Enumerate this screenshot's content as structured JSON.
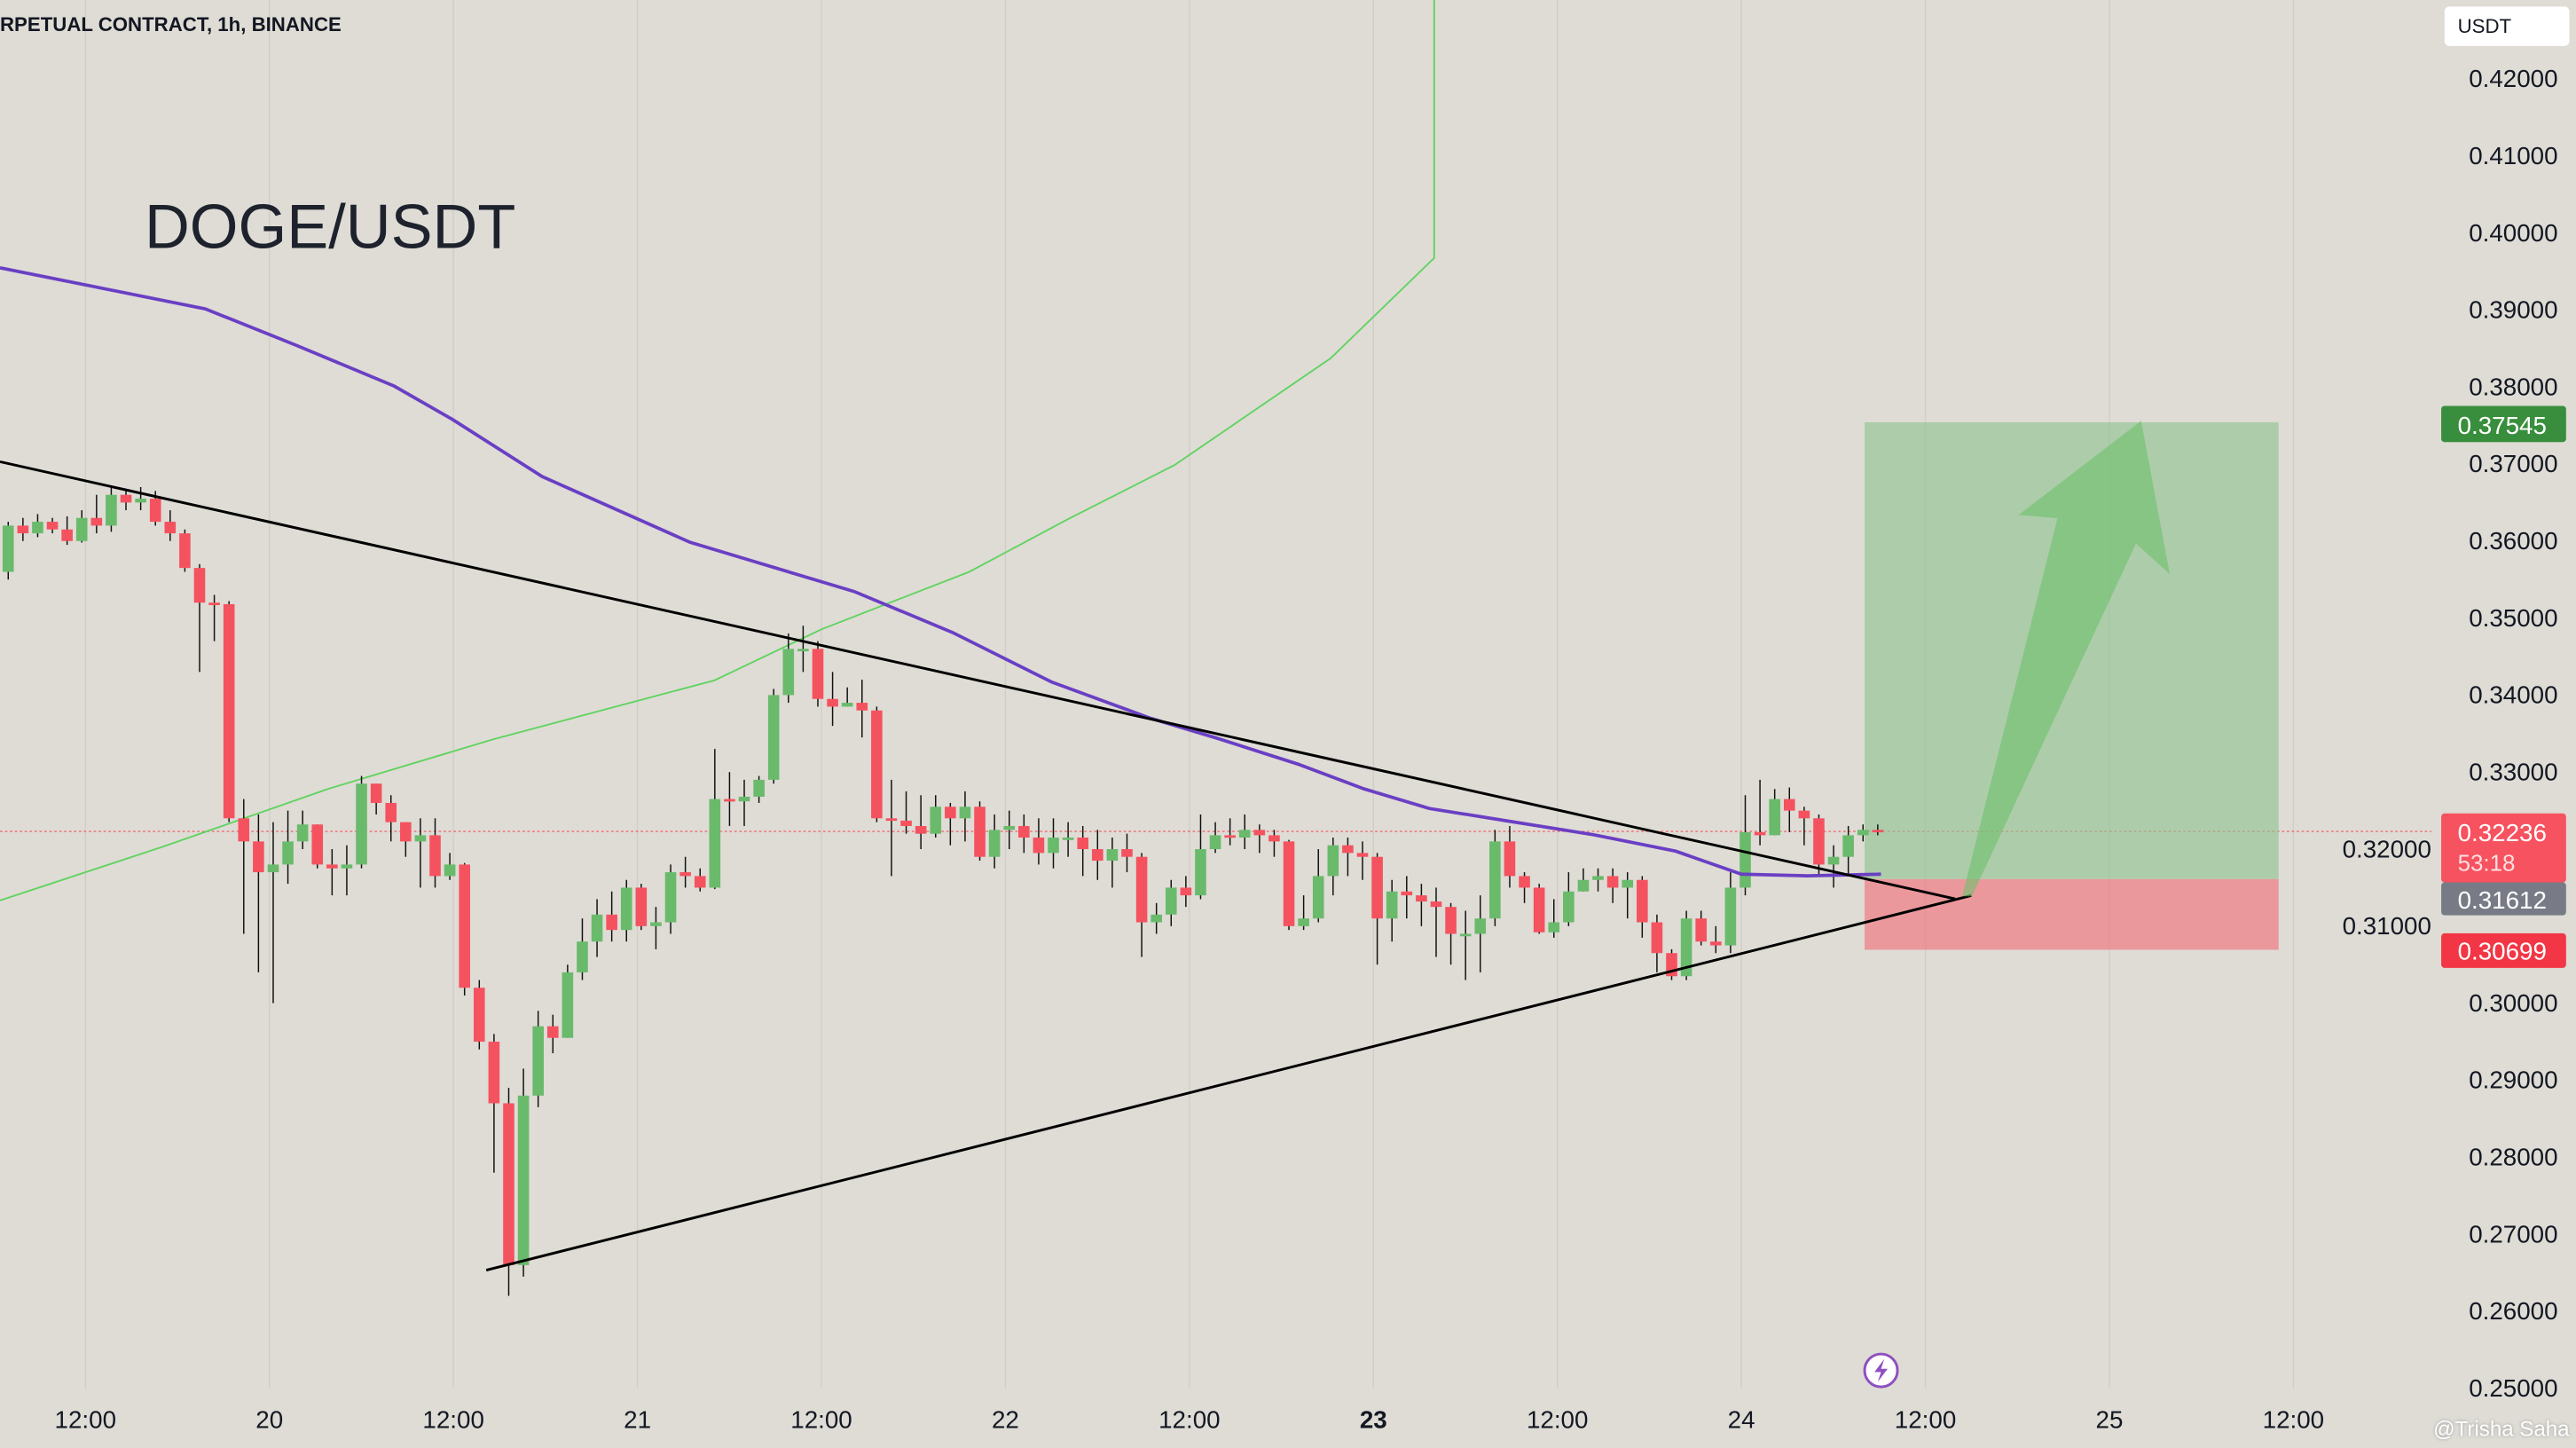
{
  "header": {
    "title": "RPETUAL CONTRACT, 1h, BINANCE",
    "symbol": "DOGE/USDT",
    "currency": "USDT"
  },
  "watermark": "@Trisha Saha",
  "colors": {
    "up": "#6aba6c",
    "down": "#f5525f",
    "ma": "#6a3fc4",
    "green_line": "#5fd35f",
    "background": "#dedcd5"
  },
  "badges": {
    "target": {
      "value": "0.37545",
      "color": "#388e3c"
    },
    "last": {
      "value": "0.32236",
      "countdown": "53:18",
      "color": "#f7525f"
    },
    "ma": {
      "value": "0.31612",
      "color": "#787b86"
    },
    "stop": {
      "value": "0.30699",
      "color": "#f23645"
    }
  },
  "chart_data": {
    "type": "candlestick",
    "title": "DOGE/USDT",
    "ylim": [
      0.25,
      0.42
    ],
    "y_ticks": [
      "0.42000",
      "0.41000",
      "0.40000",
      "0.39000",
      "0.38000",
      "0.37000",
      "0.36000",
      "0.35000",
      "0.34000",
      "0.33000",
      "0.32000",
      "0.31000",
      "0.30000",
      "0.29000",
      "0.28000",
      "0.27000",
      "0.26000",
      "0.25000"
    ],
    "x_ticks": [
      "12:00",
      "20",
      "12:00",
      "21",
      "12:00",
      "22",
      "12:00",
      "23",
      "12:00",
      "24",
      "12:00",
      "25",
      "12:00"
    ],
    "position": {
      "entry": 0.3161,
      "target": 0.37545,
      "stop": 0.30699
    },
    "candles": [
      [
        0.356,
        0.3625,
        0.355,
        0.362
      ],
      [
        0.362,
        0.363,
        0.36,
        0.361
      ],
      [
        0.361,
        0.3635,
        0.3605,
        0.3625
      ],
      [
        0.3625,
        0.363,
        0.361,
        0.3615
      ],
      [
        0.3615,
        0.3632,
        0.3595,
        0.36
      ],
      [
        0.36,
        0.364,
        0.3598,
        0.363
      ],
      [
        0.363,
        0.366,
        0.361,
        0.362
      ],
      [
        0.362,
        0.3672,
        0.3612,
        0.366
      ],
      [
        0.366,
        0.3668,
        0.364,
        0.365
      ],
      [
        0.365,
        0.367,
        0.364,
        0.3655
      ],
      [
        0.3655,
        0.3665,
        0.362,
        0.3625
      ],
      [
        0.3625,
        0.364,
        0.36,
        0.361
      ],
      [
        0.361,
        0.3615,
        0.356,
        0.3565
      ],
      [
        0.3565,
        0.357,
        0.343,
        0.352
      ],
      [
        0.352,
        0.353,
        0.347,
        0.3518
      ],
      [
        0.3518,
        0.3522,
        0.3235,
        0.324
      ],
      [
        0.324,
        0.3265,
        0.309,
        0.321
      ],
      [
        0.321,
        0.3245,
        0.304,
        0.317
      ],
      [
        0.317,
        0.3235,
        0.3,
        0.318
      ],
      [
        0.318,
        0.325,
        0.3155,
        0.321
      ],
      [
        0.321,
        0.325,
        0.32,
        0.3232
      ],
      [
        0.3232,
        0.3232,
        0.3175,
        0.318
      ],
      [
        0.318,
        0.32,
        0.314,
        0.3175
      ],
      [
        0.3175,
        0.3205,
        0.314,
        0.318
      ],
      [
        0.318,
        0.3295,
        0.3175,
        0.3285
      ],
      [
        0.3285,
        0.3285,
        0.3245,
        0.326
      ],
      [
        0.326,
        0.327,
        0.321,
        0.3235
      ],
      [
        0.3235,
        0.3235,
        0.319,
        0.321
      ],
      [
        0.321,
        0.324,
        0.315,
        0.3218
      ],
      [
        0.3218,
        0.324,
        0.315,
        0.3165
      ],
      [
        0.3165,
        0.3195,
        0.316,
        0.318
      ],
      [
        0.318,
        0.3182,
        0.301,
        0.302
      ],
      [
        0.302,
        0.303,
        0.294,
        0.295
      ],
      [
        0.295,
        0.296,
        0.278,
        0.287
      ],
      [
        0.287,
        0.289,
        0.262,
        0.266
      ],
      [
        0.266,
        0.2915,
        0.2645,
        0.288
      ],
      [
        0.288,
        0.299,
        0.2865,
        0.297
      ],
      [
        0.297,
        0.2985,
        0.2935,
        0.2955
      ],
      [
        0.2955,
        0.305,
        0.2955,
        0.304
      ],
      [
        0.304,
        0.311,
        0.303,
        0.308
      ],
      [
        0.308,
        0.3135,
        0.306,
        0.3115
      ],
      [
        0.3115,
        0.3145,
        0.308,
        0.3095
      ],
      [
        0.3095,
        0.316,
        0.308,
        0.315
      ],
      [
        0.315,
        0.3155,
        0.3095,
        0.31
      ],
      [
        0.31,
        0.3125,
        0.307,
        0.3105
      ],
      [
        0.3105,
        0.318,
        0.309,
        0.317
      ],
      [
        0.317,
        0.319,
        0.315,
        0.3165
      ],
      [
        0.3165,
        0.3175,
        0.3145,
        0.315
      ],
      [
        0.315,
        0.333,
        0.3148,
        0.3265
      ],
      [
        0.3265,
        0.33,
        0.323,
        0.3262
      ],
      [
        0.3262,
        0.329,
        0.323,
        0.3268
      ],
      [
        0.3268,
        0.3295,
        0.326,
        0.329
      ],
      [
        0.329,
        0.3408,
        0.3285,
        0.34
      ],
      [
        0.34,
        0.348,
        0.339,
        0.346
      ],
      [
        0.346,
        0.349,
        0.343,
        0.346
      ],
      [
        0.346,
        0.347,
        0.3385,
        0.3395
      ],
      [
        0.3395,
        0.343,
        0.336,
        0.3385
      ],
      [
        0.3385,
        0.341,
        0.3385,
        0.339
      ],
      [
        0.339,
        0.342,
        0.3345,
        0.338
      ],
      [
        0.338,
        0.3385,
        0.3235,
        0.324
      ],
      [
        0.324,
        0.329,
        0.3165,
        0.3237
      ],
      [
        0.3237,
        0.3275,
        0.322,
        0.323
      ],
      [
        0.323,
        0.327,
        0.32,
        0.322
      ],
      [
        0.322,
        0.327,
        0.3215,
        0.3255
      ],
      [
        0.3255,
        0.326,
        0.3205,
        0.324
      ],
      [
        0.324,
        0.3275,
        0.321,
        0.3255
      ],
      [
        0.3255,
        0.3262,
        0.3185,
        0.319
      ],
      [
        0.319,
        0.3245,
        0.3175,
        0.3225
      ],
      [
        0.3225,
        0.325,
        0.32,
        0.323
      ],
      [
        0.323,
        0.3245,
        0.3195,
        0.3215
      ],
      [
        0.3215,
        0.324,
        0.318,
        0.3195
      ],
      [
        0.3195,
        0.324,
        0.3175,
        0.3215
      ],
      [
        0.3215,
        0.3235,
        0.319,
        0.3215
      ],
      [
        0.3215,
        0.323,
        0.3165,
        0.32
      ],
      [
        0.32,
        0.3225,
        0.316,
        0.3185
      ],
      [
        0.3185,
        0.3215,
        0.315,
        0.32
      ],
      [
        0.32,
        0.322,
        0.317,
        0.319
      ],
      [
        0.319,
        0.3195,
        0.306,
        0.3105
      ],
      [
        0.3105,
        0.313,
        0.309,
        0.3115
      ],
      [
        0.3115,
        0.316,
        0.31,
        0.315
      ],
      [
        0.315,
        0.3165,
        0.3125,
        0.314
      ],
      [
        0.314,
        0.3245,
        0.3135,
        0.32
      ],
      [
        0.32,
        0.3235,
        0.3195,
        0.3218
      ],
      [
        0.3218,
        0.324,
        0.3205,
        0.3215
      ],
      [
        0.3215,
        0.3245,
        0.32,
        0.3225
      ],
      [
        0.3225,
        0.3232,
        0.3195,
        0.3218
      ],
      [
        0.3218,
        0.3225,
        0.319,
        0.321
      ],
      [
        0.321,
        0.3212,
        0.3095,
        0.31
      ],
      [
        0.31,
        0.314,
        0.3095,
        0.311
      ],
      [
        0.311,
        0.32,
        0.3105,
        0.3165
      ],
      [
        0.3165,
        0.3215,
        0.314,
        0.3205
      ],
      [
        0.3205,
        0.3215,
        0.3165,
        0.3195
      ],
      [
        0.3195,
        0.321,
        0.316,
        0.319
      ],
      [
        0.319,
        0.3195,
        0.305,
        0.311
      ],
      [
        0.311,
        0.316,
        0.308,
        0.3145
      ],
      [
        0.3145,
        0.3165,
        0.311,
        0.314
      ],
      [
        0.314,
        0.3155,
        0.31,
        0.3132
      ],
      [
        0.3132,
        0.315,
        0.306,
        0.3125
      ],
      [
        0.3125,
        0.313,
        0.305,
        0.309
      ],
      [
        0.309,
        0.312,
        0.303,
        0.309
      ],
      [
        0.309,
        0.314,
        0.304,
        0.311
      ],
      [
        0.311,
        0.3225,
        0.31,
        0.321
      ],
      [
        0.321,
        0.323,
        0.315,
        0.3165
      ],
      [
        0.3165,
        0.317,
        0.313,
        0.315
      ],
      [
        0.315,
        0.3155,
        0.309,
        0.3092
      ],
      [
        0.3092,
        0.3135,
        0.3085,
        0.3105
      ],
      [
        0.3105,
        0.317,
        0.31,
        0.3145
      ],
      [
        0.3145,
        0.3175,
        0.3145,
        0.316
      ],
      [
        0.316,
        0.3175,
        0.3145,
        0.3165
      ],
      [
        0.3165,
        0.3175,
        0.313,
        0.315
      ],
      [
        0.315,
        0.317,
        0.311,
        0.316
      ],
      [
        0.316,
        0.3165,
        0.3085,
        0.3105
      ],
      [
        0.3105,
        0.3115,
        0.304,
        0.3065
      ],
      [
        0.3065,
        0.307,
        0.303,
        0.3035
      ],
      [
        0.3035,
        0.312,
        0.303,
        0.311
      ],
      [
        0.311,
        0.312,
        0.3075,
        0.308
      ],
      [
        0.308,
        0.31,
        0.3065,
        0.3075
      ],
      [
        0.3075,
        0.317,
        0.3065,
        0.315
      ],
      [
        0.315,
        0.327,
        0.314,
        0.3222
      ],
      [
        0.3222,
        0.329,
        0.3205,
        0.3218
      ],
      [
        0.3218,
        0.3278,
        0.3218,
        0.3265
      ],
      [
        0.3265,
        0.328,
        0.3222,
        0.325
      ],
      [
        0.325,
        0.3255,
        0.3205,
        0.324
      ],
      [
        0.324,
        0.3245,
        0.3165,
        0.318
      ],
      [
        0.318,
        0.3205,
        0.315,
        0.319
      ],
      [
        0.319,
        0.323,
        0.3165,
        0.3218
      ],
      [
        0.3218,
        0.3232,
        0.321,
        0.3225
      ],
      [
        0.3225,
        0.3232,
        0.3218,
        0.3224
      ]
    ]
  }
}
